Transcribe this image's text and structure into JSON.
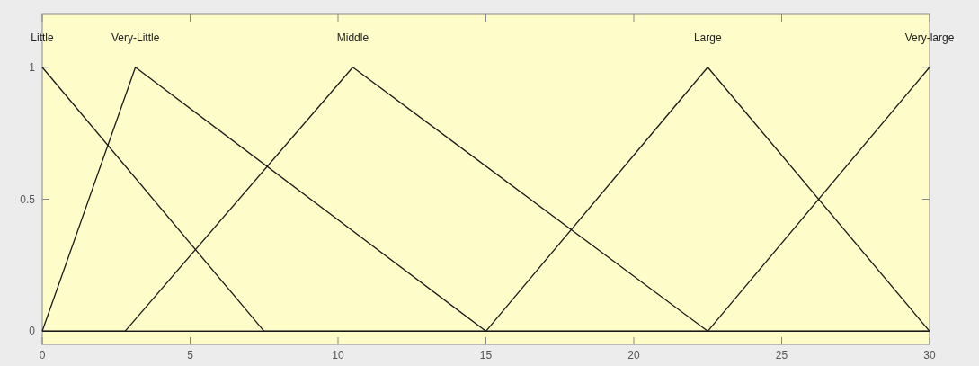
{
  "chart_data": {
    "type": "line",
    "xlim": [
      0,
      30
    ],
    "ylim": [
      -0.05,
      1.2
    ],
    "xticks": [
      0,
      5,
      10,
      15,
      20,
      25,
      30
    ],
    "yticks": [
      0,
      0.5,
      1
    ],
    "grid": false,
    "marker": "none",
    "line_style": "solid",
    "series": [
      {
        "name": "Little",
        "color": "#1a1a1a",
        "x": [
          0,
          7.5,
          30
        ],
        "values": [
          1,
          0,
          0
        ]
      },
      {
        "name": "Very-Little",
        "color": "#1a1a1a",
        "x": [
          0,
          3.15,
          15,
          30
        ],
        "values": [
          0,
          1,
          0,
          0
        ]
      },
      {
        "name": "Middle",
        "color": "#1a1a1a",
        "x": [
          0,
          2.8,
          10.5,
          22.5,
          30
        ],
        "values": [
          0,
          0,
          1,
          0,
          0
        ]
      },
      {
        "name": "Large",
        "color": "#1a1a1a",
        "x": [
          0,
          15,
          22.5,
          30
        ],
        "values": [
          0,
          0,
          1,
          0
        ]
      },
      {
        "name": "Very-large",
        "color": "#1a1a1a",
        "x": [
          0,
          22.5,
          30
        ],
        "values": [
          0,
          0,
          1
        ]
      }
    ]
  }
}
